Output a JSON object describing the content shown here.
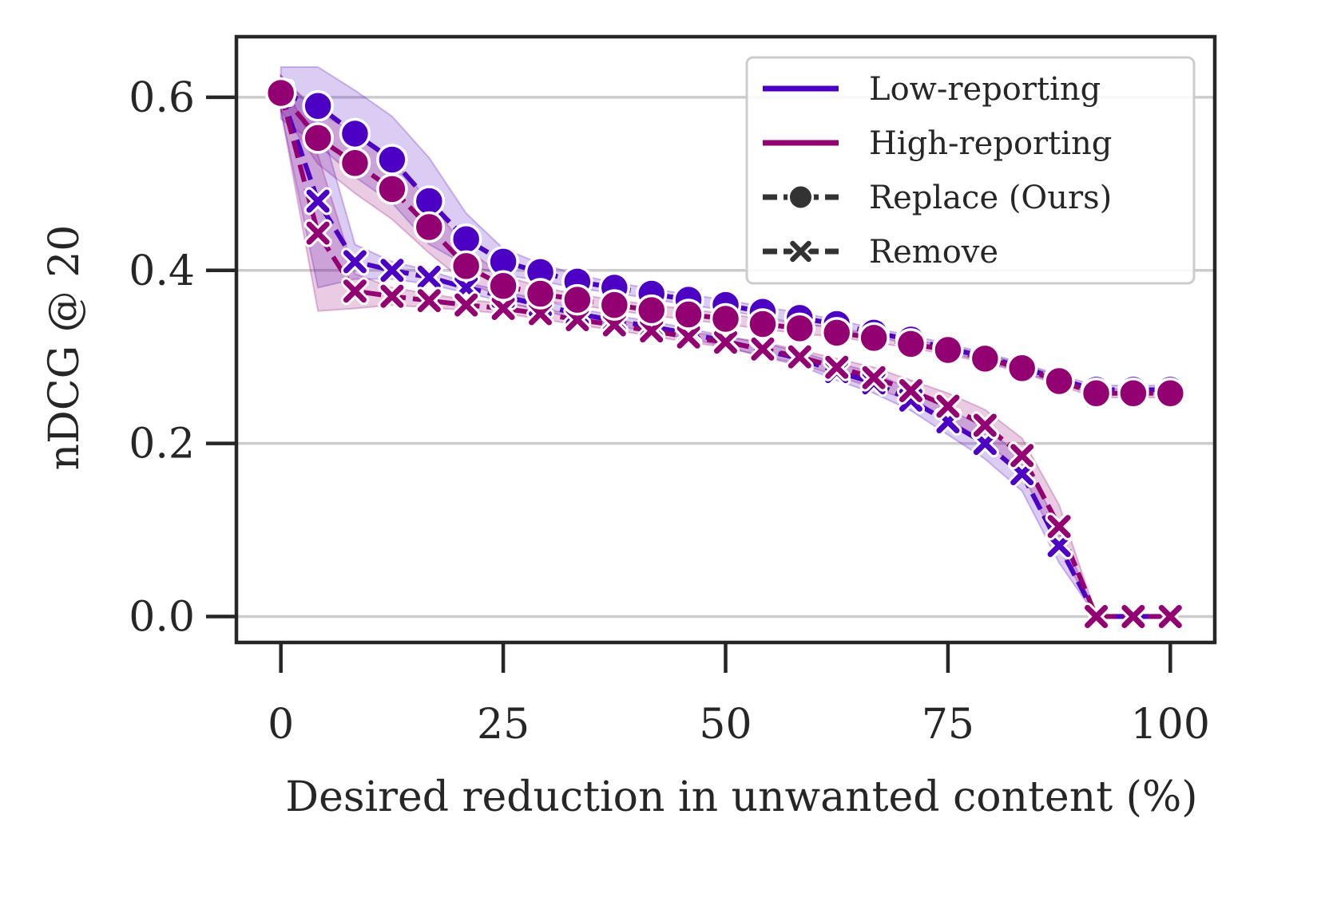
{
  "chart_data": {
    "type": "line",
    "title": "",
    "xlabel": "Desired reduction in unwanted content (%)",
    "ylabel": "nDCG @ 20",
    "xlim": [
      -5,
      105
    ],
    "ylim": [
      -0.03,
      0.67
    ],
    "xticks": [
      0,
      25,
      50,
      75,
      100
    ],
    "xtick_labels": [
      "0",
      "25",
      "50",
      "75",
      "100"
    ],
    "yticks": [
      0.0,
      0.2,
      0.4,
      0.6
    ],
    "ytick_labels": [
      "0.0",
      "0.2",
      "0.4",
      "0.6"
    ],
    "grid": "horizontal",
    "legend_position": "top-right",
    "legend": [
      {
        "label": "Low-reporting",
        "kind": "line",
        "color": "#4B00C3"
      },
      {
        "label": "High-reporting",
        "kind": "line",
        "color": "#930072"
      },
      {
        "label": "Replace (Ours)",
        "kind": "marker-circle",
        "color": "#333333"
      },
      {
        "label": "Remove",
        "kind": "marker-x",
        "color": "#333333"
      }
    ],
    "x": [
      0,
      4.17,
      8.33,
      12.5,
      16.67,
      20.83,
      25,
      29.17,
      33.33,
      37.5,
      41.67,
      45.83,
      50,
      54.17,
      58.33,
      62.5,
      66.67,
      70.83,
      75,
      79.17,
      83.33,
      87.5,
      91.67,
      95.83,
      100
    ],
    "series": [
      {
        "name": "Low-reporting · Replace (Ours)",
        "group": "Low-reporting",
        "method": "Replace",
        "marker": "circle",
        "color": "#4B00C3",
        "values": [
          0.605,
          0.59,
          0.558,
          0.528,
          0.48,
          0.436,
          0.41,
          0.398,
          0.387,
          0.38,
          0.373,
          0.366,
          0.36,
          0.352,
          0.345,
          0.338,
          0.328,
          0.32,
          0.31,
          0.3,
          0.288,
          0.274,
          0.262,
          0.262,
          0.262
        ],
        "band": [
          0.03,
          0.045,
          0.05,
          0.05,
          0.05,
          0.03,
          0.015,
          0.01,
          0.008,
          0.006,
          0.006,
          0.006,
          0.006,
          0.006,
          0.006,
          0.005,
          0.005,
          0.005,
          0.005,
          0.005,
          0.005,
          0.005,
          0.005,
          0.005,
          0.005
        ]
      },
      {
        "name": "High-reporting · Replace (Ours)",
        "group": "High-reporting",
        "method": "Replace",
        "marker": "circle",
        "color": "#930072",
        "values": [
          0.605,
          0.553,
          0.524,
          0.494,
          0.45,
          0.405,
          0.382,
          0.373,
          0.366,
          0.36,
          0.354,
          0.349,
          0.344,
          0.338,
          0.333,
          0.328,
          0.322,
          0.315,
          0.308,
          0.298,
          0.287,
          0.272,
          0.258,
          0.258,
          0.258
        ],
        "band": [
          0.02,
          0.03,
          0.035,
          0.035,
          0.03,
          0.02,
          0.012,
          0.008,
          0.006,
          0.006,
          0.006,
          0.006,
          0.006,
          0.006,
          0.006,
          0.005,
          0.005,
          0.005,
          0.005,
          0.005,
          0.005,
          0.005,
          0.005,
          0.005,
          0.005
        ]
      },
      {
        "name": "Low-reporting · Remove",
        "group": "Low-reporting",
        "method": "Remove",
        "marker": "x",
        "color": "#4B00C3",
        "values": [
          0.605,
          0.48,
          0.41,
          0.4,
          0.392,
          0.38,
          0.37,
          0.36,
          0.35,
          0.342,
          0.335,
          0.327,
          0.318,
          0.308,
          0.298,
          0.283,
          0.27,
          0.25,
          0.225,
          0.2,
          0.165,
          0.082,
          0.0,
          0.0,
          0.0
        ],
        "band": [
          0.02,
          0.1,
          0.02,
          0.01,
          0.008,
          0.006,
          0.006,
          0.006,
          0.006,
          0.006,
          0.006,
          0.006,
          0.006,
          0.008,
          0.008,
          0.01,
          0.012,
          0.012,
          0.015,
          0.018,
          0.02,
          0.02,
          0.002,
          0.002,
          0.002
        ]
      },
      {
        "name": "High-reporting · Remove",
        "group": "High-reporting",
        "method": "Remove",
        "marker": "x",
        "color": "#930072",
        "values": [
          0.605,
          0.443,
          0.376,
          0.37,
          0.365,
          0.36,
          0.356,
          0.35,
          0.343,
          0.337,
          0.33,
          0.323,
          0.317,
          0.309,
          0.3,
          0.288,
          0.276,
          0.261,
          0.243,
          0.221,
          0.186,
          0.104,
          0.0,
          0.0,
          0.0
        ],
        "band": [
          0.02,
          0.09,
          0.02,
          0.01,
          0.008,
          0.006,
          0.006,
          0.006,
          0.006,
          0.006,
          0.006,
          0.006,
          0.006,
          0.008,
          0.008,
          0.01,
          0.012,
          0.012,
          0.015,
          0.018,
          0.02,
          0.025,
          0.002,
          0.002,
          0.002
        ]
      }
    ]
  }
}
